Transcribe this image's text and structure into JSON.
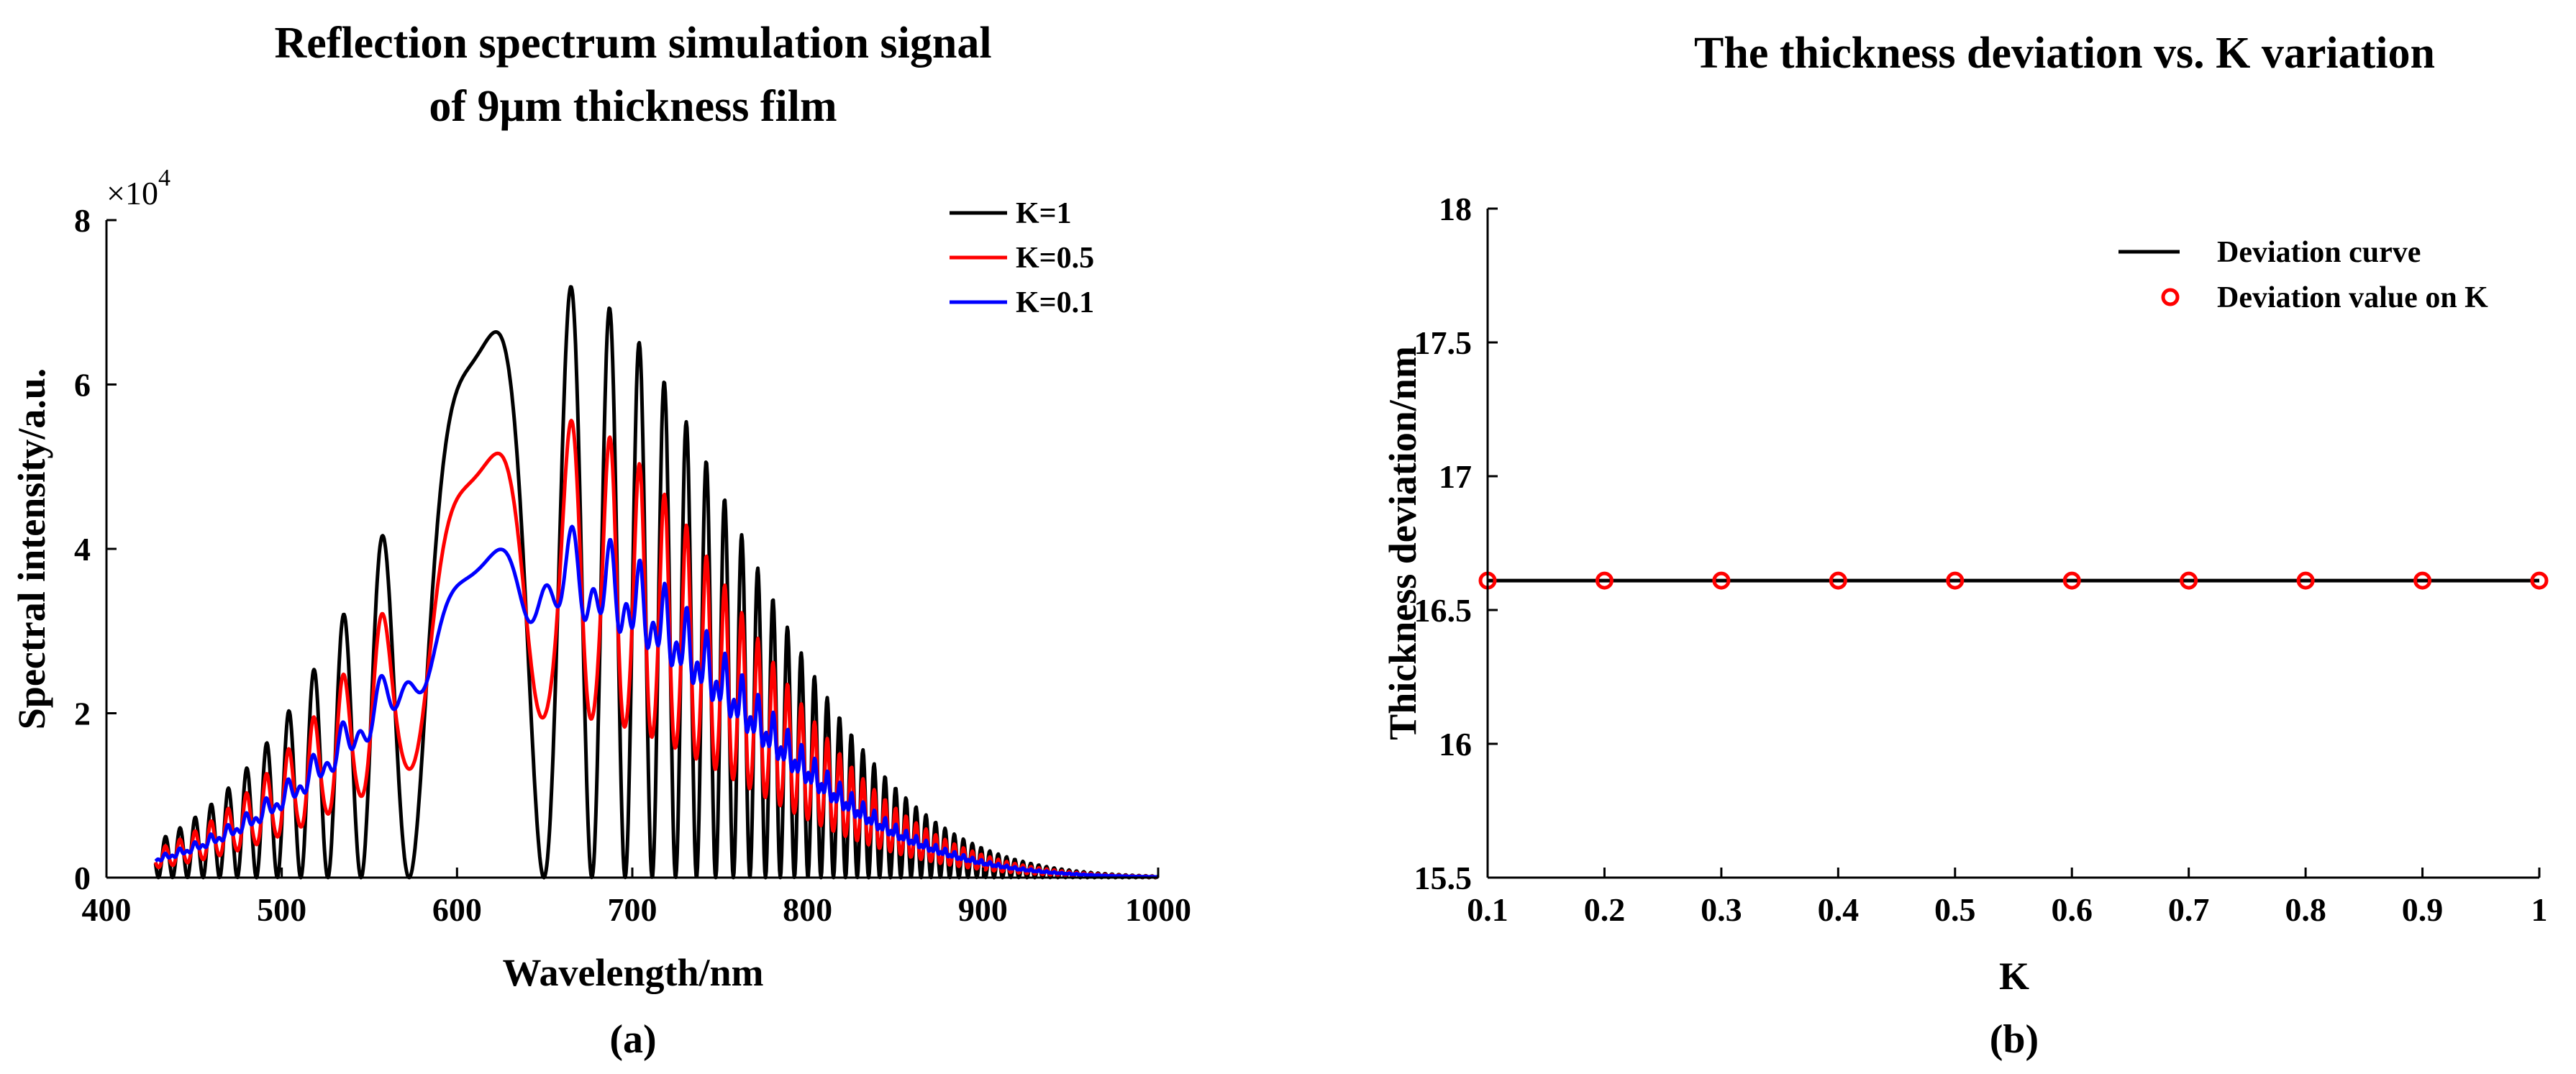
{
  "chart_data": [
    {
      "type": "line",
      "panel_label": "(a)",
      "title_line1": "Reflection spectrum simulation signal",
      "title_line2": "of 9μm thickness film",
      "xlabel": "Wavelength/nm",
      "ylabel": "Spectral intensity/a.u.",
      "xlim": [
        400,
        1000
      ],
      "ylim": [
        0,
        80000
      ],
      "x_ticks": [
        "400",
        "500",
        "600",
        "700",
        "800",
        "900",
        "1000"
      ],
      "y_ticks": [
        "0",
        "2",
        "4",
        "6",
        "8"
      ],
      "y_multiplier_base": "×10",
      "y_multiplier_exp": "4",
      "legend_position": "top-right",
      "envelope": {
        "center_nm": 660,
        "sigma_nm": 98,
        "x_start_nm": 428,
        "peak_value": 72000
      },
      "fringe_peaks_nm": [
        665,
        690,
        713,
        740,
        770,
        795,
        820,
        845,
        872,
        900,
        930
      ],
      "series": [
        {
          "name": "K=1",
          "color": "#000000",
          "modulation": 1.0,
          "line_width": 5
        },
        {
          "name": "K=0.5",
          "color": "#ff0000",
          "modulation": 0.5,
          "line_width": 5
        },
        {
          "name": "K=0.1",
          "color": "#0000ff",
          "modulation": 0.1,
          "line_width": 5
        }
      ]
    },
    {
      "type": "line",
      "panel_label": "(b)",
      "title": "The thickness deviation vs. K variation",
      "xlabel": "K",
      "ylabel": "Thickness deviation/nm",
      "xlim": [
        0.1,
        1
      ],
      "ylim": [
        15.5,
        18
      ],
      "x_ticks": [
        "0.1",
        "0.2",
        "0.3",
        "0.4",
        "0.5",
        "0.6",
        "0.7",
        "0.8",
        "0.9",
        "1"
      ],
      "y_ticks": [
        "15.5",
        "16",
        "16.5",
        "17",
        "17.5",
        "18"
      ],
      "legend_position": "top-right",
      "series": [
        {
          "name": "Deviation curve",
          "style": "line",
          "color": "#000000",
          "x": [
            0.1,
            1
          ],
          "y": [
            16.61,
            16.61
          ]
        },
        {
          "name": "Deviation value on K",
          "style": "markers",
          "color": "#ff0000",
          "x": [
            0.1,
            0.2,
            0.3,
            0.4,
            0.5,
            0.6,
            0.7,
            0.8,
            0.9,
            1.0
          ],
          "y": [
            16.61,
            16.61,
            16.61,
            16.61,
            16.61,
            16.61,
            16.61,
            16.61,
            16.61,
            16.61
          ]
        }
      ]
    }
  ]
}
